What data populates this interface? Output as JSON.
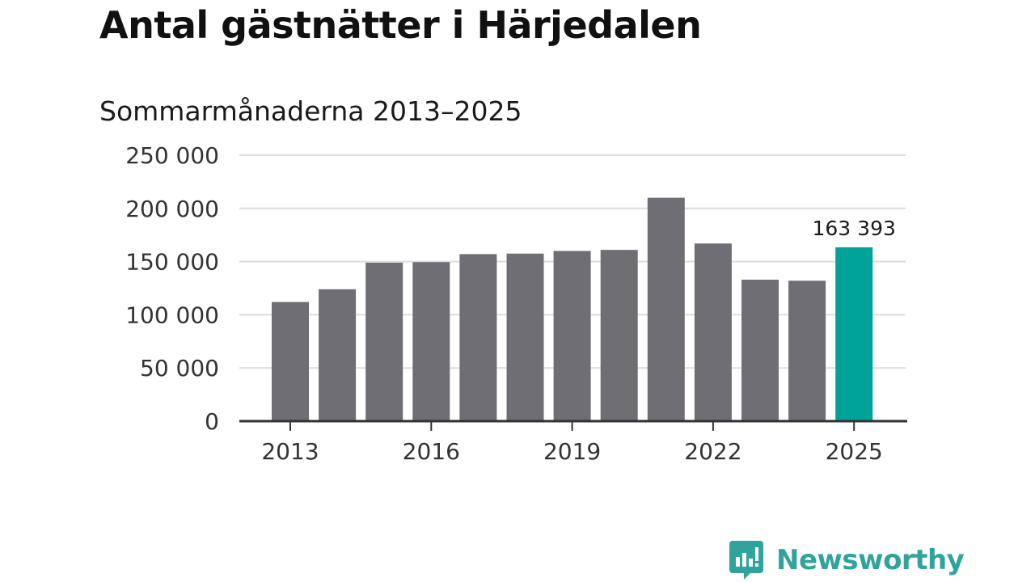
{
  "chart_data": {
    "type": "bar",
    "title": "Antal gästnätter i Härjedalen",
    "subtitle": "Sommarmånaderna 2013–2025",
    "categories": [
      "2013",
      "2014",
      "2015",
      "2016",
      "2017",
      "2018",
      "2019",
      "2020",
      "2021",
      "2022",
      "2023",
      "2024",
      "2025"
    ],
    "values": [
      112000,
      124000,
      149000,
      149500,
      157000,
      157500,
      160000,
      161000,
      210000,
      167000,
      133000,
      132000,
      163393
    ],
    "x_tick_labels": [
      "2013",
      "2016",
      "2019",
      "2022",
      "2025"
    ],
    "y_tick_values": [
      0,
      50000,
      100000,
      150000,
      200000,
      250000
    ],
    "y_tick_labels": [
      "0",
      "50 000",
      "100 000",
      "150 000",
      "200 000",
      "250 000"
    ],
    "ylim": [
      0,
      250000
    ],
    "grid": true,
    "highlight_index": 12,
    "highlight_label": "163 393",
    "colors": {
      "bar": "#6f6e74",
      "highlight": "#00a397",
      "grid": "#dcdcdc",
      "axis": "#333333"
    }
  },
  "brand": {
    "name": "Newsworthy",
    "icon": "newsworthy-chart-icon",
    "color": "#2fa39c"
  }
}
